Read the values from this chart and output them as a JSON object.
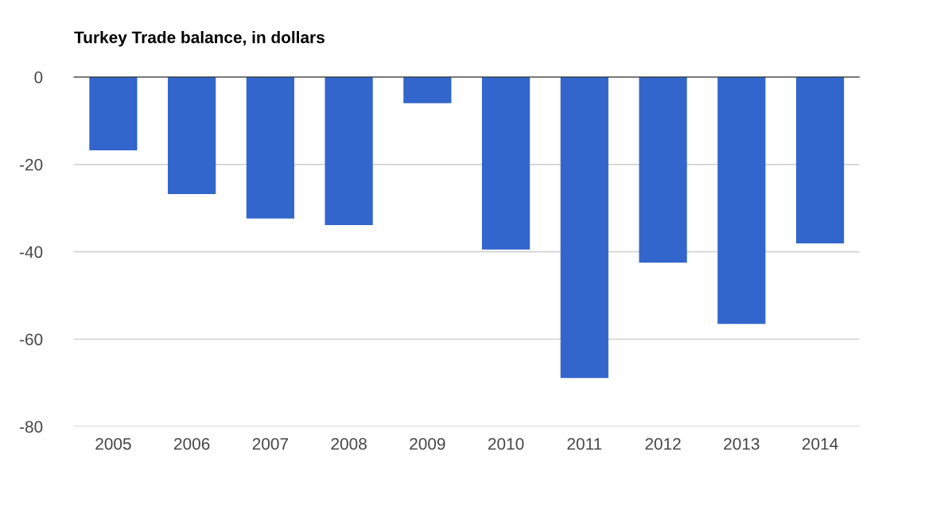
{
  "chart_data": {
    "type": "bar",
    "title": "Turkey Trade balance, in dollars",
    "categories": [
      "2005",
      "2006",
      "2007",
      "2008",
      "2009",
      "2010",
      "2011",
      "2012",
      "2013",
      "2014"
    ],
    "values": [
      -16.8,
      -26.8,
      -32.4,
      -33.9,
      -6.0,
      -39.5,
      -68.9,
      -42.5,
      -56.5,
      -38.1
    ],
    "color": "#3366cc",
    "ylim": [
      -80,
      0
    ],
    "yticks": [
      -80,
      -60,
      -40,
      -20,
      0
    ],
    "grid": "y"
  }
}
